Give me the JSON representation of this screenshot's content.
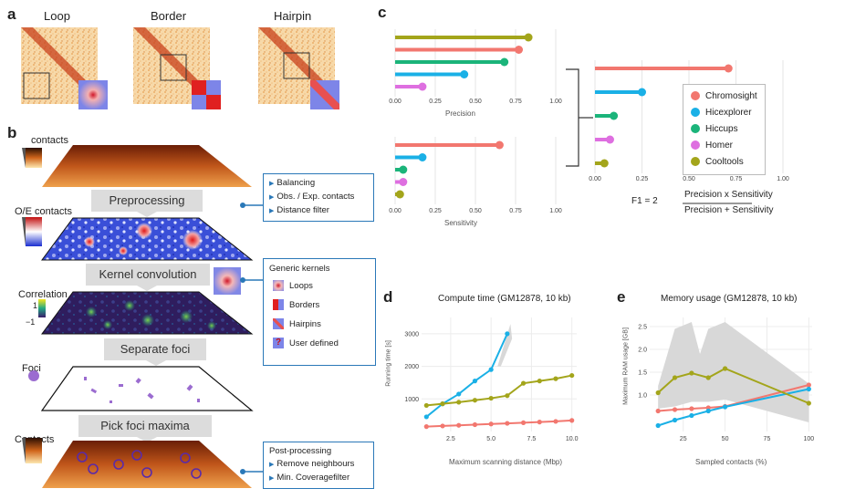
{
  "panel_a": {
    "label": "a",
    "titles": [
      "Loop",
      "Border",
      "Hairpin"
    ]
  },
  "panel_b": {
    "label": "b",
    "contacts_label": "contacts",
    "oe_label": "O/E contacts",
    "correlation_label": "Correlation",
    "corr_max": "1",
    "corr_min": "−1",
    "foci_label": "Foci",
    "contacts_label2": "Contacts",
    "steps": [
      "Preprocessing",
      "Kernel convolution",
      "Separate foci",
      "Pick foci maxima"
    ],
    "preprocessing_items": [
      "Balancing",
      "Obs. / Exp. contacts",
      "Distance filter"
    ],
    "kernels_title": "Generic kernels",
    "kernel_items": [
      "Loops",
      "Borders",
      "Hairpins",
      "User defined"
    ],
    "kernel_question": "?",
    "post_title": "Post-processing",
    "post_items": [
      "Remove neighbours",
      "Min. Coveragefilter"
    ]
  },
  "panel_c": {
    "label": "c",
    "colors": {
      "Chromosight": "#f2776f",
      "Hicexplorer": "#1ab0e6",
      "Hiccups": "#1bb47a",
      "Homer": "#de6fe0",
      "Cooltools": "#a3a51b"
    },
    "legend": [
      "Chromosight",
      "Hicexplorer",
      "Hiccups",
      "Homer",
      "Cooltools"
    ],
    "precision_label": "Precision",
    "sensitivity_label": "Sensitivity",
    "ticks": [
      "0.00",
      "0.25",
      "0.50",
      "0.75",
      "1.00"
    ],
    "formula_lhs": "F1 = 2",
    "formula_num": "Precision x Sensitivity",
    "formula_den": "Precision + Sensitivity"
  },
  "panel_d": {
    "label": "d",
    "title": "Compute time (GM12878, 10 kb)",
    "xlabel": "Maximum scanning distance (Mbp)",
    "ylabel": "Running time [s]",
    "xticks": [
      "2.5",
      "5.0",
      "7.5",
      "10.0"
    ],
    "yticks": [
      "1000",
      "2000",
      "3000"
    ]
  },
  "panel_e": {
    "label": "e",
    "title": "Memory usage (GM12878, 10 kb)",
    "xlabel": "Sampled contacts (%)",
    "ylabel": "Maximum RAM usage [GB]",
    "xticks": [
      "25",
      "50",
      "75",
      "100"
    ],
    "yticks": [
      "1.0",
      "1.5",
      "2.0",
      "2.5"
    ]
  },
  "chart_data": [
    {
      "type": "bar",
      "title": "",
      "xlabel": "Precision",
      "categories": [
        "Cooltools",
        "Chromosight",
        "Hiccups",
        "Hicexplorer",
        "Homer"
      ],
      "values": [
        0.83,
        0.77,
        0.68,
        0.43,
        0.17
      ],
      "xlim": [
        0,
        1
      ]
    },
    {
      "type": "bar",
      "title": "",
      "xlabel": "Sensitivity",
      "categories": [
        "Chromosight",
        "Hicexplorer",
        "Hiccups",
        "Homer",
        "Cooltools"
      ],
      "values": [
        0.65,
        0.17,
        0.05,
        0.05,
        0.03
      ],
      "xlim": [
        0,
        1
      ]
    },
    {
      "type": "bar",
      "title": "",
      "xlabel": "F1",
      "categories": [
        "Chromosight",
        "Hicexplorer",
        "Hiccups",
        "Homer",
        "Cooltools"
      ],
      "values": [
        0.71,
        0.25,
        0.1,
        0.08,
        0.05
      ],
      "xlim": [
        0,
        1
      ]
    },
    {
      "type": "line",
      "title": "Compute time (GM12878, 10 kb)",
      "xlabel": "Maximum scanning distance (Mbp)",
      "ylabel": "Running time [s]",
      "xlim": [
        0.7,
        10.3
      ],
      "ylim": [
        0,
        3500
      ],
      "series": [
        {
          "name": "Chromosight",
          "color": "#f2776f",
          "x": [
            1,
            2,
            3,
            4,
            5,
            6,
            7,
            8,
            9,
            10
          ],
          "y": [
            150,
            170,
            190,
            210,
            230,
            250,
            270,
            290,
            310,
            340
          ]
        },
        {
          "name": "Hicexplorer",
          "color": "#1ab0e6",
          "x": [
            1,
            2,
            3,
            4,
            5,
            6
          ],
          "y": [
            450,
            850,
            1150,
            1550,
            1900,
            3000
          ]
        },
        {
          "name": "Cooltools",
          "color": "#a3a51b",
          "x": [
            1,
            2,
            3,
            4,
            5,
            6,
            7,
            8,
            9,
            10
          ],
          "y": [
            800,
            850,
            900,
            960,
            1020,
            1100,
            1480,
            1550,
            1620,
            1720
          ]
        }
      ]
    },
    {
      "type": "line",
      "title": "Memory usage (GM12878, 10 kb)",
      "xlabel": "Sampled contacts (%)",
      "ylabel": "Maximum RAM usage [GB]",
      "xlim": [
        5,
        102
      ],
      "ylim": [
        0.2,
        2.7
      ],
      "series": [
        {
          "name": "Chromosight",
          "color": "#f2776f",
          "x": [
            10,
            20,
            30,
            40,
            50,
            100
          ],
          "y": [
            0.65,
            0.68,
            0.7,
            0.72,
            0.75,
            1.22
          ]
        },
        {
          "name": "Hicexplorer",
          "color": "#1ab0e6",
          "x": [
            10,
            20,
            30,
            40,
            50,
            100
          ],
          "y": [
            0.33,
            0.45,
            0.55,
            0.65,
            0.74,
            1.13
          ]
        },
        {
          "name": "Cooltools",
          "color": "#a3a51b",
          "x": [
            10,
            20,
            30,
            40,
            50,
            100
          ],
          "y": [
            1.05,
            1.38,
            1.48,
            1.38,
            1.58,
            0.82
          ]
        }
      ]
    }
  ]
}
